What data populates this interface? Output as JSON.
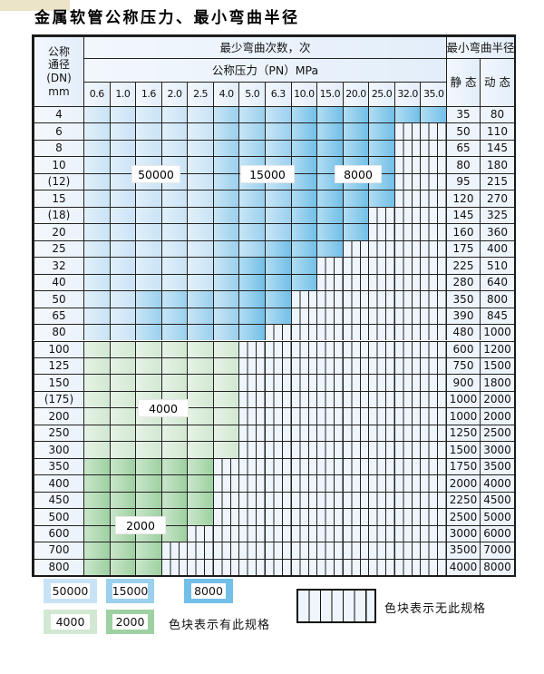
{
  "title": "金属软管公称压力、最小弯曲半径",
  "table": {
    "header": {
      "dn_lines": [
        "公称",
        "通径",
        "(DN)",
        "mm"
      ],
      "bend_times": "最少弯曲次数，次",
      "pressure_title": "公称压力（PN）MPa",
      "min_radius": "最小弯曲半径",
      "static_label": "静 态",
      "dynamic_label": "动 态",
      "pressures": [
        "0.6",
        "1.0",
        "1.6",
        "2.0",
        "2.5",
        "4.0",
        "5.0",
        "6.3",
        "10.0",
        "15.0",
        "20.0",
        "25.0",
        "32.0",
        "35.0"
      ]
    },
    "rows": [
      {
        "dn": "4",
        "static": "35",
        "dynamic": "80",
        "zones": [
          [
            "z1",
            0,
            4
          ],
          [
            "z2",
            5,
            7
          ],
          [
            "z3",
            8,
            13
          ]
        ]
      },
      {
        "dn": "6",
        "static": "50",
        "dynamic": "110",
        "zones": [
          [
            "z1",
            0,
            4
          ],
          [
            "z2",
            5,
            7
          ],
          [
            "z3",
            8,
            11
          ]
        ]
      },
      {
        "dn": "8",
        "static": "65",
        "dynamic": "145",
        "zones": [
          [
            "z1",
            0,
            4
          ],
          [
            "z2",
            5,
            7
          ],
          [
            "z3",
            8,
            11
          ]
        ]
      },
      {
        "dn": "10",
        "static": "80",
        "dynamic": "180",
        "zones": [
          [
            "z1",
            0,
            4
          ],
          [
            "z2",
            5,
            7
          ],
          [
            "z3",
            8,
            11
          ]
        ]
      },
      {
        "dn": "(12)",
        "static": "95",
        "dynamic": "215",
        "zones": [
          [
            "z1",
            0,
            4
          ],
          [
            "z2",
            5,
            7
          ],
          [
            "z3",
            8,
            11
          ]
        ]
      },
      {
        "dn": "15",
        "static": "120",
        "dynamic": "270",
        "zones": [
          [
            "z1",
            0,
            4
          ],
          [
            "z2",
            5,
            7
          ],
          [
            "z3",
            8,
            11
          ]
        ]
      },
      {
        "dn": "(18)",
        "static": "145",
        "dynamic": "325",
        "zones": [
          [
            "z1",
            0,
            4
          ],
          [
            "z2",
            5,
            7
          ],
          [
            "z3",
            8,
            10
          ]
        ]
      },
      {
        "dn": "20",
        "static": "160",
        "dynamic": "360",
        "zones": [
          [
            "z1",
            0,
            4
          ],
          [
            "z2",
            5,
            7
          ],
          [
            "z3",
            8,
            10
          ]
        ]
      },
      {
        "dn": "25",
        "static": "175",
        "dynamic": "400",
        "zones": [
          [
            "z1",
            0,
            4
          ],
          [
            "z2",
            5,
            6
          ],
          [
            "z3",
            7,
            9
          ]
        ]
      },
      {
        "dn": "32",
        "static": "225",
        "dynamic": "510",
        "zones": [
          [
            "z1",
            0,
            4
          ],
          [
            "z2",
            5,
            5
          ],
          [
            "z3",
            6,
            8
          ]
        ]
      },
      {
        "dn": "40",
        "static": "280",
        "dynamic": "640",
        "zones": [
          [
            "z1",
            0,
            4
          ],
          [
            "z2",
            5,
            5
          ],
          [
            "z3",
            6,
            8
          ]
        ]
      },
      {
        "dn": "50",
        "static": "350",
        "dynamic": "800",
        "zones": [
          [
            "z1",
            0,
            1
          ],
          [
            "z2",
            2,
            5
          ],
          [
            "z3",
            6,
            7
          ]
        ]
      },
      {
        "dn": "65",
        "static": "390",
        "dynamic": "845",
        "zones": [
          [
            "z1",
            0,
            1
          ],
          [
            "z2",
            2,
            5
          ],
          [
            "z3",
            6,
            7
          ]
        ]
      },
      {
        "dn": "80",
        "static": "480",
        "dynamic": "1000",
        "zones": [
          [
            "z1",
            0,
            1
          ],
          [
            "z2",
            2,
            5
          ],
          [
            "z3",
            6,
            6
          ]
        ]
      },
      {
        "dn": "100",
        "static": "600",
        "dynamic": "1200",
        "zones": [
          [
            "g1",
            0,
            5
          ]
        ]
      },
      {
        "dn": "125",
        "static": "750",
        "dynamic": "1500",
        "zones": [
          [
            "g1",
            0,
            5
          ]
        ]
      },
      {
        "dn": "150",
        "static": "900",
        "dynamic": "1800",
        "zones": [
          [
            "g1",
            0,
            5
          ]
        ]
      },
      {
        "dn": "(175)",
        "static": "1000",
        "dynamic": "2000",
        "zones": [
          [
            "g1",
            0,
            5
          ]
        ]
      },
      {
        "dn": "200",
        "static": "1000",
        "dynamic": "2000",
        "zones": [
          [
            "g1",
            0,
            5
          ]
        ]
      },
      {
        "dn": "250",
        "static": "1250",
        "dynamic": "2500",
        "zones": [
          [
            "g1",
            0,
            5
          ]
        ]
      },
      {
        "dn": "300",
        "static": "1500",
        "dynamic": "3000",
        "zones": [
          [
            "g1",
            0,
            5
          ]
        ]
      },
      {
        "dn": "350",
        "static": "1750",
        "dynamic": "3500",
        "zones": [
          [
            "g2",
            0,
            4
          ]
        ]
      },
      {
        "dn": "400",
        "static": "2000",
        "dynamic": "4000",
        "zones": [
          [
            "g2",
            0,
            4
          ]
        ]
      },
      {
        "dn": "450",
        "static": "2250",
        "dynamic": "4500",
        "zones": [
          [
            "g2",
            0,
            4
          ]
        ]
      },
      {
        "dn": "500",
        "static": "2500",
        "dynamic": "5000",
        "zones": [
          [
            "g2",
            0,
            4
          ]
        ]
      },
      {
        "dn": "600",
        "static": "3000",
        "dynamic": "6000",
        "zones": [
          [
            "g2",
            0,
            3
          ]
        ]
      },
      {
        "dn": "700",
        "static": "3500",
        "dynamic": "7000",
        "zones": [
          [
            "g2",
            0,
            2
          ]
        ]
      },
      {
        "dn": "800",
        "static": "4000",
        "dynamic": "8000",
        "zones": [
          [
            "g2",
            0,
            2
          ]
        ]
      }
    ]
  },
  "overlay_labels": [
    {
      "text": "50000"
    },
    {
      "text": "15000"
    },
    {
      "text": "8000"
    },
    {
      "text": "4000"
    },
    {
      "text": "2000"
    }
  ],
  "legend": {
    "blocks": [
      {
        "label": "50000",
        "zone": "z1"
      },
      {
        "label": "15000",
        "zone": "z2"
      },
      {
        "label": "8000",
        "zone": "z3"
      },
      {
        "label": "4000",
        "zone": "g1"
      },
      {
        "label": "2000",
        "zone": "g2"
      }
    ],
    "has_spec_text": "色块表示有此规格",
    "no_spec_text": "色块表示无此规格"
  },
  "colors": {
    "z1": "#c9e3f6",
    "z2": "#9bd0ee",
    "z3": "#72c0e8",
    "g1": "#d2e8d2",
    "g2": "#9ed1a1",
    "nospec_bg": "#eef5fc",
    "grid": "#222222",
    "header_bg": "#e3eefa"
  }
}
